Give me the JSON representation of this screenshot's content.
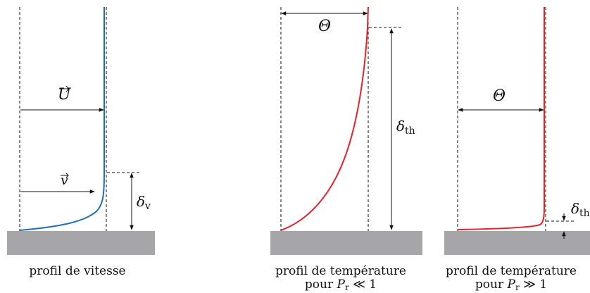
{
  "panels": [
    {
      "caption_line1": "profil de vitesse",
      "caption_line2": "",
      "labels": {
        "U": "U",
        "v": "v",
        "delta": "δ",
        "delta_sub": "v"
      }
    },
    {
      "caption_line1": "profil de température",
      "caption_line2_prefix": "pour ",
      "caption_P": "P",
      "caption_P_sub": "r",
      "caption_relation": " ≪ 1",
      "labels": {
        "theta": "Θ",
        "delta": "δ",
        "delta_sub": "th"
      }
    },
    {
      "caption_line1": "profil de température",
      "caption_line2_prefix": "pour ",
      "caption_P": "P",
      "caption_P_sub": "r",
      "caption_relation": " ≫ 1",
      "labels": {
        "theta": "Θ",
        "delta": "δ",
        "delta_sub": "th"
      }
    }
  ],
  "colors": {
    "velocity_curve": "#1f6fb5",
    "temperature_curve": "#e8202a",
    "wall": "#a6a6a8",
    "ink": "#111111"
  }
}
